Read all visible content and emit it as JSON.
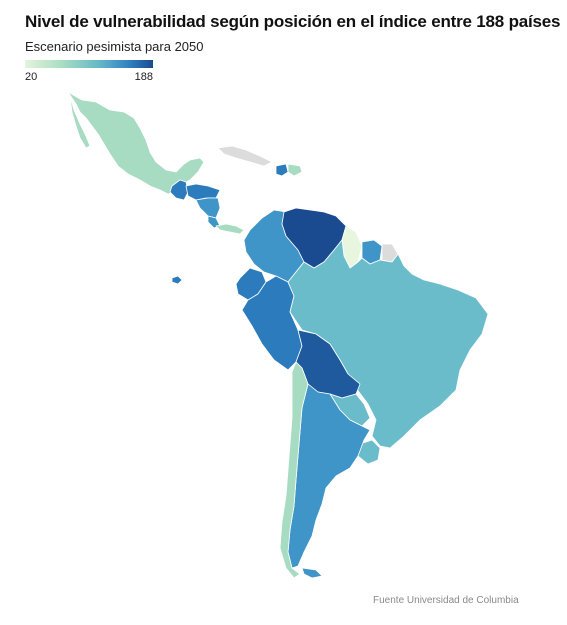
{
  "title": "Nivel de vulnerabilidad según posición en el índice entre 188 países",
  "subtitle": "Escenario pesimista para 2050",
  "legend": {
    "min_label": "20",
    "max_label": "188",
    "min_value": 20,
    "max_value": 188,
    "colors": [
      "#e3f4dc",
      "#a8dcc2",
      "#60b4c8",
      "#2f7fc0",
      "#1a4a8f"
    ]
  },
  "source": "Fuente Universidad de Columbia",
  "colors": {
    "no_data": "#dcdcdc",
    "lightest": "#e8f6e0",
    "light_green": "#a8dcc2",
    "teal": "#6abccb",
    "mid_blue": "#3f94c8",
    "blue": "#2b7bbd",
    "dark_blue": "#1f5a9e",
    "darkest": "#1a4a8f"
  },
  "regions": [
    {
      "name": "México",
      "class": "light_green"
    },
    {
      "name": "Guatemala",
      "class": "blue"
    },
    {
      "name": "Honduras",
      "class": "blue"
    },
    {
      "name": "Nicaragua",
      "class": "mid_blue"
    },
    {
      "name": "Costa Rica",
      "class": "mid_blue"
    },
    {
      "name": "Panamá",
      "class": "light_green"
    },
    {
      "name": "Cuba",
      "class": "no_data"
    },
    {
      "name": "Haití",
      "class": "blue"
    },
    {
      "name": "República Dominicana",
      "class": "light_green"
    },
    {
      "name": "Colombia",
      "class": "mid_blue"
    },
    {
      "name": "Venezuela",
      "class": "darkest"
    },
    {
      "name": "Guyana",
      "class": "lightest"
    },
    {
      "name": "Surinam",
      "class": "mid_blue"
    },
    {
      "name": "Guayana Francesa",
      "class": "no_data"
    },
    {
      "name": "Ecuador",
      "class": "blue"
    },
    {
      "name": "Perú",
      "class": "blue"
    },
    {
      "name": "Brasil",
      "class": "teal"
    },
    {
      "name": "Bolivia",
      "class": "dark_blue"
    },
    {
      "name": "Paraguay",
      "class": "teal"
    },
    {
      "name": "Chile",
      "class": "light_green"
    },
    {
      "name": "Argentina",
      "class": "mid_blue"
    },
    {
      "name": "Uruguay",
      "class": "teal"
    },
    {
      "name": "Galápagos",
      "class": "blue"
    }
  ]
}
